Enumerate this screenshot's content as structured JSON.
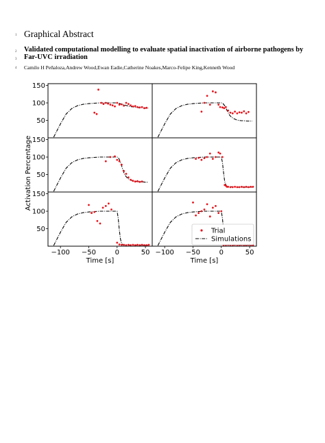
{
  "line_numbers": [
    "1",
    "2",
    "3",
    "4"
  ],
  "heading": "Graphical Abstract",
  "title_lines": [
    "Validated computational modelling to evaluate spatial inactivation of airborne pathogens by",
    "Far-UVC irradiation"
  ],
  "authors": "Camilo H Peñaloza,Andrew Wood,Ewan Eadie,Catherine Noakes,Marco-Felipe King,Kenneth Wood",
  "colors": {
    "trial": "#e8141c",
    "simulation": "#000000"
  },
  "chart_data": {
    "type": "scatter",
    "layout": "3x2 grid, shared axes",
    "xlabel": "Time [s]",
    "ylabel": "Activation Percentage",
    "xlim": [
      -122,
      62
    ],
    "ylim": [
      0,
      155
    ],
    "x_ticks": [
      -100,
      -50,
      0,
      50
    ],
    "x_tick_labels": [
      "−100",
      "−50",
      "0",
      "50"
    ],
    "y_ticks": [
      50,
      100,
      150
    ],
    "y_tick_labels": [
      "50",
      "100",
      "150"
    ],
    "legend": {
      "placement": "lower-right of bottom-right panel",
      "entries": [
        "Trial",
        "Simulations"
      ]
    },
    "panels": [
      {
        "series": [
          {
            "name": "Trial",
            "style": "points",
            "x": [
              -40,
              -36,
              -33,
              -28,
              -24,
              -20,
              -16,
              -12,
              -8,
              -4,
              0,
              4,
              8,
              12,
              16,
              20,
              24,
              28,
              32,
              36,
              40,
              44,
              48,
              52
            ],
            "y": [
              72,
              68,
              138,
              100,
              97,
              100,
              98,
              95,
              93,
              90,
              100,
              95,
              96,
              92,
              100,
              97,
              93,
              90,
              91,
              88,
              87,
              88,
              85,
              86
            ]
          },
          {
            "name": "Simulations",
            "style": "dash-dot",
            "x": [
              -112,
              -100,
              -90,
              -80,
              -70,
              -60,
              -50,
              -40,
              -30,
              -20,
              -10,
              0,
              5,
              10,
              15,
              20,
              25,
              30,
              35,
              40,
              45,
              50,
              55
            ],
            "y": [
              2,
              40,
              68,
              84,
              92,
              96,
              98,
              99,
              100,
              100,
              100,
              100,
              98,
              95,
              93,
              91,
              89,
              88,
              87,
              86,
              86,
              85,
              85
            ]
          }
        ]
      },
      {
        "series": [
          {
            "name": "Trial",
            "style": "points",
            "x": [
              -35,
              -30,
              -25,
              -20,
              -15,
              -10,
              -5,
              -2,
              2,
              5,
              8,
              12,
              16,
              20,
              24,
              28,
              32,
              36,
              40,
              44,
              48
            ],
            "y": [
              75,
              100,
              120,
              95,
              133,
              130,
              95,
              88,
              87,
              85,
              88,
              78,
              72,
              70,
              75,
              70,
              73,
              72,
              76,
              70,
              74
            ]
          },
          {
            "name": "Simulations",
            "style": "dash-dot",
            "x": [
              -112,
              -100,
              -90,
              -80,
              -70,
              -60,
              -50,
              -40,
              -30,
              -20,
              -10,
              0,
              3,
              6,
              9,
              12,
              15,
              18,
              22,
              26,
              30,
              35,
              40,
              45,
              50,
              55
            ],
            "y": [
              2,
              40,
              68,
              84,
              92,
              96,
              98,
              99,
              100,
              100,
              100,
              100,
              98,
              92,
              82,
              72,
              64,
              59,
              55,
              52,
              50,
              49,
              49,
              48,
              48,
              48
            ]
          }
        ]
      },
      {
        "series": [
          {
            "name": "Trial",
            "style": "points",
            "x": [
              -20,
              -12,
              -4,
              0,
              4,
              8,
              12,
              16,
              20,
              24,
              28,
              32,
              36,
              40,
              44
            ],
            "y": [
              88,
              100,
              102,
              92,
              88,
              78,
              60,
              52,
              42,
              35,
              32,
              30,
              31,
              29,
              30
            ]
          },
          {
            "name": "Simulations",
            "style": "dash-dot",
            "x": [
              -112,
              -100,
              -90,
              -80,
              -70,
              -60,
              -50,
              -40,
              -30,
              -20,
              -10,
              0,
              3,
              6,
              9,
              12,
              15,
              18,
              22,
              26,
              30,
              35,
              40,
              45,
              50,
              55
            ],
            "y": [
              2,
              40,
              68,
              84,
              92,
              96,
              98,
              99,
              100,
              100,
              100,
              100,
              96,
              85,
              70,
              55,
              46,
              40,
              36,
              33,
              31,
              30,
              29,
              29,
              28,
              28
            ]
          }
        ]
      },
      {
        "series": [
          {
            "name": "Trial",
            "style": "points",
            "x": [
              -45,
              -40,
              -35,
              -30,
              -25,
              -20,
              -15,
              -10,
              -5,
              -2,
              2,
              6,
              8,
              10,
              12,
              16,
              20,
              24,
              28,
              32,
              36,
              40,
              44,
              48,
              52,
              56
            ],
            "y": [
              95,
              98,
              92,
              97,
              100,
              110,
              95,
              100,
              113,
              110,
              100,
              20,
              18,
              15,
              15,
              14,
              14,
              15,
              14,
              14,
              15,
              14,
              15,
              14,
              15,
              15
            ]
          },
          {
            "name": "Simulations",
            "style": "dash-dot",
            "x": [
              -112,
              -100,
              -90,
              -80,
              -70,
              -60,
              -50,
              -40,
              -30,
              -20,
              -10,
              0,
              2,
              4,
              6,
              8,
              10,
              14,
              20,
              30,
              40,
              55
            ],
            "y": [
              2,
              40,
              68,
              84,
              92,
              96,
              98,
              99,
              100,
              100,
              100,
              100,
              85,
              55,
              30,
              20,
              16,
              15,
              15,
              14,
              14,
              14
            ]
          }
        ]
      },
      {
        "series": [
          {
            "name": "Trial",
            "style": "points",
            "x": [
              -50,
              -45,
              -40,
              -35,
              -30,
              -25,
              -20,
              -15,
              -10,
              0,
              4,
              8,
              12,
              16,
              20,
              24,
              28,
              32,
              36,
              40,
              44,
              48,
              52,
              56
            ],
            "y": [
              118,
              95,
              98,
              72,
              65,
              110,
              115,
              122,
              105,
              10,
              5,
              4,
              4,
              3,
              4,
              3,
              4,
              3,
              4,
              3,
              4,
              3,
              3,
              4
            ]
          },
          {
            "name": "Simulations",
            "style": "dash-dot",
            "x": [
              -112,
              -100,
              -90,
              -80,
              -70,
              -60,
              -50,
              -40,
              -30,
              -20,
              -10,
              0,
              2,
              4,
              6,
              8,
              10,
              14,
              20,
              30,
              40,
              55
            ],
            "y": [
              2,
              40,
              68,
              84,
              92,
              96,
              98,
              99,
              100,
              100,
              100,
              100,
              80,
              45,
              20,
              8,
              4,
              3,
              3,
              3,
              3,
              3
            ]
          }
        ]
      },
      {
        "series": [
          {
            "name": "Trial",
            "style": "points",
            "x": [
              -50,
              -45,
              -40,
              -35,
              -30,
              -25,
              -20,
              -15,
              -10,
              -5,
              0,
              4,
              8,
              12,
              16,
              20,
              24,
              28,
              32,
              36,
              40,
              44,
              48,
              52,
              56
            ],
            "y": [
              125,
              88,
              95,
              100,
              105,
              120,
              85,
              110,
              115,
              95,
              100,
              3,
              3,
              4,
              3,
              3,
              4,
              3,
              3,
              4,
              3,
              3,
              4,
              3,
              3
            ]
          },
          {
            "name": "Simulations",
            "style": "dash-dot",
            "x": [
              -112,
              -100,
              -90,
              -80,
              -70,
              -60,
              -50,
              -40,
              -30,
              -20,
              -10,
              0,
              2,
              4,
              6,
              8,
              10,
              14,
              20,
              30,
              40,
              55
            ],
            "y": [
              2,
              40,
              68,
              84,
              92,
              96,
              98,
              99,
              100,
              100,
              100,
              100,
              80,
              45,
              20,
              8,
              4,
              3,
              3,
              3,
              3,
              3
            ]
          }
        ]
      }
    ]
  }
}
